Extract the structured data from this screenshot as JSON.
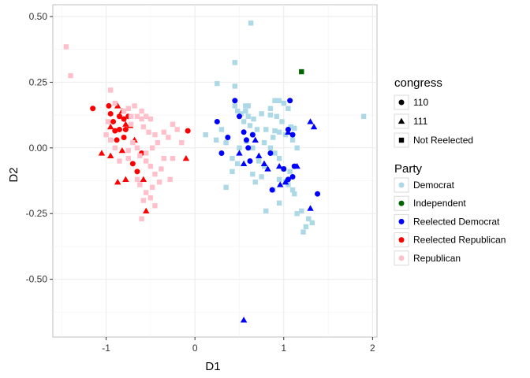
{
  "chart_data": {
    "type": "scatter",
    "xlabel": "D1",
    "ylabel": "D2",
    "xlim": [
      -1.6,
      2.05
    ],
    "ylim": [
      -0.72,
      0.545
    ],
    "x_ticks": [
      -1,
      0,
      1,
      2
    ],
    "x_tick_labels": [
      "-1",
      "0",
      "1",
      "2"
    ],
    "y_ticks": [
      0.5,
      0.25,
      0.0,
      -0.25,
      -0.5
    ],
    "y_tick_labels": [
      "0.50",
      "0.25",
      "0.00",
      "-0.25",
      "-0.50"
    ],
    "grid": true,
    "legend_placement": "right",
    "legends": [
      {
        "title": "congress",
        "entries": [
          {
            "label": "110",
            "shape": "circle"
          },
          {
            "label": "111",
            "shape": "triangle"
          },
          {
            "label": "Not Reelected",
            "shape": "square"
          }
        ]
      },
      {
        "title": "Party",
        "entries": [
          {
            "label": "Democrat",
            "color": "#ADD8E6"
          },
          {
            "label": "Independent",
            "color": "#006400"
          },
          {
            "label": "Reelected Democrat",
            "color": "#0000FF"
          },
          {
            "label": "Reelected Republican",
            "color": "#FF0000"
          },
          {
            "label": "Republican",
            "color": "#FFC0CB"
          }
        ]
      }
    ],
    "series": [
      {
        "party": "Democrat",
        "congress": "Not Reelected",
        "shape": "square",
        "color": "#ADD8E6",
        "points": [
          [
            0.63,
            0.475
          ],
          [
            0.45,
            0.325
          ],
          [
            0.25,
            0.245
          ],
          [
            0.45,
            0.235
          ],
          [
            1.9,
            0.12
          ],
          [
            0.45,
            0.16
          ],
          [
            0.48,
            0.14
          ],
          [
            0.52,
            0.13
          ],
          [
            0.57,
            0.16
          ],
          [
            0.57,
            0.14
          ],
          [
            0.6,
            0.16
          ],
          [
            0.6,
            0.12
          ],
          [
            0.55,
            0.1
          ],
          [
            0.62,
            0.085
          ],
          [
            0.66,
            0.11
          ],
          [
            0.75,
            0.13
          ],
          [
            0.85,
            0.15
          ],
          [
            0.9,
            0.18
          ],
          [
            0.95,
            0.18
          ],
          [
            1.0,
            0.17
          ],
          [
            1.05,
            0.15
          ],
          [
            0.85,
            0.125
          ],
          [
            0.92,
            0.12
          ],
          [
            0.98,
            0.1
          ],
          [
            1.08,
            0.08
          ],
          [
            1.12,
            0.075
          ],
          [
            0.7,
            0.07
          ],
          [
            0.8,
            0.07
          ],
          [
            0.9,
            0.065
          ],
          [
            0.95,
            0.06
          ],
          [
            1.02,
            0.05
          ],
          [
            1.1,
            0.03
          ],
          [
            1.15,
            0.0
          ],
          [
            0.78,
            0.02
          ],
          [
            0.85,
            0.0
          ],
          [
            0.9,
            -0.02
          ],
          [
            0.72,
            -0.05
          ],
          [
            0.78,
            -0.07
          ],
          [
            0.95,
            -0.04
          ],
          [
            1.0,
            -0.08
          ],
          [
            0.65,
            -0.1
          ],
          [
            0.75,
            -0.11
          ],
          [
            1.02,
            -0.13
          ],
          [
            1.05,
            -0.14
          ],
          [
            0.95,
            -0.12
          ],
          [
            1.07,
            -0.09
          ],
          [
            0.42,
            -0.04
          ],
          [
            0.48,
            -0.06
          ],
          [
            0.35,
            0.02
          ],
          [
            0.42,
            -0.09
          ],
          [
            0.5,
            0.0
          ],
          [
            0.65,
            0.0
          ],
          [
            0.35,
            -0.15
          ],
          [
            0.8,
            -0.24
          ],
          [
            0.95,
            -0.21
          ],
          [
            1.1,
            -0.16
          ],
          [
            1.15,
            -0.25
          ],
          [
            1.2,
            -0.24
          ],
          [
            1.28,
            -0.27
          ],
          [
            1.22,
            -0.32
          ],
          [
            1.25,
            -0.3
          ],
          [
            1.32,
            -0.285
          ],
          [
            1.12,
            -0.175
          ],
          [
            0.58,
            0.025
          ],
          [
            0.88,
            0.04
          ],
          [
            0.3,
            0.07
          ],
          [
            0.12,
            0.05
          ],
          [
            0.24,
            0.03
          ],
          [
            0.68,
            -0.13
          ],
          [
            0.88,
            -0.16
          ]
        ]
      },
      {
        "party": "Independent",
        "congress": "Not Reelected",
        "shape": "square",
        "color": "#006400",
        "points": [
          [
            1.2,
            0.29
          ]
        ]
      },
      {
        "party": "Reelected Democrat",
        "congress": "110",
        "shape": "circle",
        "color": "#0000FF",
        "points": [
          [
            0.25,
            0.1
          ],
          [
            0.37,
            0.04
          ],
          [
            0.45,
            0.18
          ],
          [
            0.5,
            0.12
          ],
          [
            0.55,
            0.06
          ],
          [
            0.58,
            0.03
          ],
          [
            0.65,
            0.05
          ],
          [
            0.6,
            0.0
          ],
          [
            0.62,
            -0.05
          ],
          [
            0.3,
            -0.02
          ],
          [
            0.85,
            -0.02
          ],
          [
            1.0,
            -0.08
          ],
          [
            1.05,
            0.07
          ],
          [
            1.07,
            0.18
          ],
          [
            1.1,
            0.05
          ],
          [
            1.12,
            -0.07
          ],
          [
            1.38,
            -0.175
          ],
          [
            0.87,
            -0.16
          ],
          [
            1.05,
            -0.12
          ],
          [
            1.1,
            -0.11
          ]
        ]
      },
      {
        "party": "Reelected Democrat",
        "congress": "111",
        "shape": "triangle",
        "color": "#0000FF",
        "points": [
          [
            0.5,
            -0.02
          ],
          [
            0.55,
            -0.06
          ],
          [
            0.68,
            0.03
          ],
          [
            0.72,
            -0.03
          ],
          [
            0.78,
            -0.06
          ],
          [
            0.82,
            -0.08
          ],
          [
            0.95,
            -0.07
          ],
          [
            1.05,
            0.06
          ],
          [
            1.15,
            -0.07
          ],
          [
            1.3,
            0.1
          ],
          [
            1.34,
            0.08
          ],
          [
            1.3,
            -0.23
          ],
          [
            0.96,
            -0.14
          ],
          [
            1.02,
            -0.13
          ],
          [
            0.55,
            -0.655
          ]
        ]
      },
      {
        "party": "Reelected Republican",
        "congress": "110",
        "shape": "circle",
        "color": "#FF0000",
        "points": [
          [
            -1.15,
            0.15
          ],
          [
            -0.97,
            0.16
          ],
          [
            -0.92,
            0.1
          ],
          [
            -0.95,
            0.13
          ],
          [
            -0.85,
            0.12
          ],
          [
            -0.8,
            0.11
          ],
          [
            -0.75,
            0.12
          ],
          [
            -0.78,
            0.07
          ],
          [
            -0.85,
            0.07
          ],
          [
            -0.8,
            0.04
          ],
          [
            -0.88,
            0.03
          ],
          [
            -0.7,
            -0.06
          ],
          [
            -0.65,
            -0.09
          ],
          [
            -0.6,
            -0.02
          ],
          [
            -0.08,
            0.065
          ],
          [
            -0.9,
            0.065
          ]
        ]
      },
      {
        "party": "Reelected Republican",
        "congress": "111",
        "shape": "triangle",
        "color": "#FF0000",
        "points": [
          [
            -1.05,
            -0.02
          ],
          [
            -0.95,
            -0.03
          ],
          [
            -0.87,
            0.16
          ],
          [
            -0.82,
            0.14
          ],
          [
            -0.78,
            0.09
          ],
          [
            -0.95,
            0.08
          ],
          [
            -0.82,
            -0.01
          ],
          [
            -0.68,
            0.03
          ],
          [
            -0.87,
            -0.13
          ],
          [
            -0.78,
            -0.12
          ],
          [
            -0.58,
            -0.12
          ],
          [
            -0.55,
            -0.24
          ],
          [
            -0.1,
            -0.04
          ],
          [
            -0.73,
            0.085
          ]
        ]
      },
      {
        "party": "Republican",
        "congress": "Not Reelected",
        "shape": "square",
        "color": "#FFC0CB",
        "points": [
          [
            -1.45,
            0.385
          ],
          [
            -1.4,
            0.275
          ],
          [
            -0.95,
            0.22
          ],
          [
            -0.9,
            0.17
          ],
          [
            -0.8,
            0.14
          ],
          [
            -0.75,
            0.15
          ],
          [
            -0.72,
            0.09
          ],
          [
            -0.68,
            0.16
          ],
          [
            -0.6,
            0.14
          ],
          [
            -0.55,
            0.12
          ],
          [
            -0.5,
            0.11
          ],
          [
            -0.58,
            0.08
          ],
          [
            -0.52,
            0.06
          ],
          [
            -0.45,
            0.05
          ],
          [
            -0.35,
            0.06
          ],
          [
            -0.3,
            0.04
          ],
          [
            -0.25,
            0.09
          ],
          [
            -0.2,
            0.07
          ],
          [
            -0.15,
            0.02
          ],
          [
            -0.42,
            0.02
          ],
          [
            -0.48,
            0.0
          ],
          [
            -0.55,
            -0.02
          ],
          [
            -0.62,
            -0.03
          ],
          [
            -0.65,
            0.0
          ],
          [
            -0.7,
            0.02
          ],
          [
            -0.75,
            -0.01
          ],
          [
            -0.35,
            -0.04
          ],
          [
            -0.38,
            -0.08
          ],
          [
            -0.45,
            -0.1
          ],
          [
            -0.5,
            -0.07
          ],
          [
            -0.55,
            -0.05
          ],
          [
            -0.25,
            -0.04
          ],
          [
            -0.28,
            -0.12
          ],
          [
            -0.4,
            -0.13
          ],
          [
            -0.48,
            -0.15
          ],
          [
            -0.55,
            -0.17
          ],
          [
            -0.58,
            -0.2
          ],
          [
            -0.6,
            -0.27
          ],
          [
            -0.65,
            -0.12
          ],
          [
            -0.62,
            -0.14
          ],
          [
            -0.5,
            -0.19
          ],
          [
            -0.45,
            -0.22
          ],
          [
            -0.9,
            0.0
          ],
          [
            -0.95,
            0.03
          ],
          [
            -1.0,
            0.05
          ],
          [
            -0.98,
            0.1
          ],
          [
            -0.85,
            -0.05
          ],
          [
            -0.75,
            -0.04
          ],
          [
            -0.6,
            0.11
          ],
          [
            -0.72,
            0.12
          ],
          [
            -0.65,
            0.12
          ]
        ]
      }
    ]
  }
}
